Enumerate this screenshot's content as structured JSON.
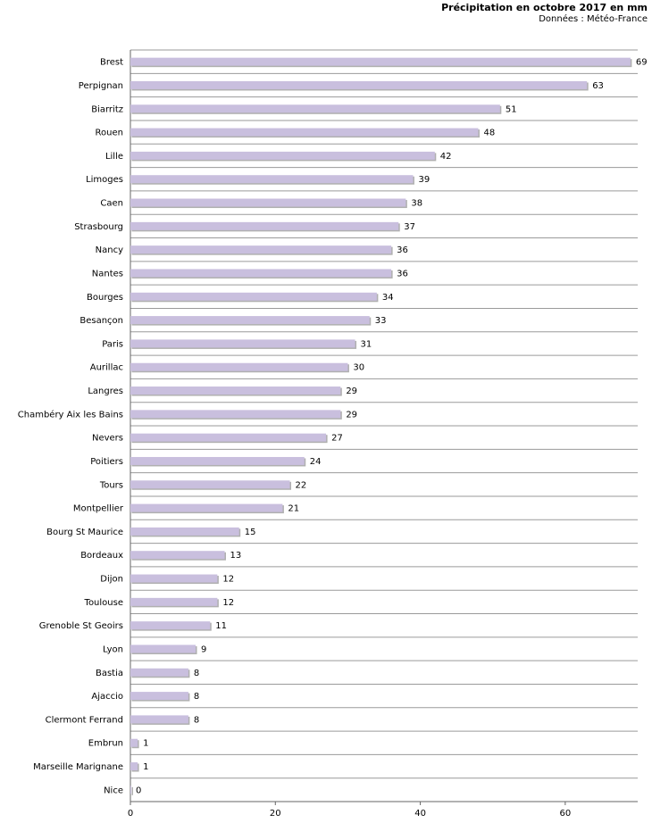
{
  "chart_data": {
    "type": "bar",
    "orientation": "horizontal",
    "title": "Précipitation en octobre 2017 en mm",
    "subtitle": "Données : Météo-France",
    "categories": [
      "Brest",
      "Perpignan",
      "Biarritz",
      "Rouen",
      "Lille",
      "Limoges",
      "Caen",
      "Strasbourg",
      "Nancy",
      "Nantes",
      "Bourges",
      "Besançon",
      "Paris",
      "Aurillac",
      "Langres",
      "Chambéry Aix les Bains",
      "Nevers",
      "Poitiers",
      "Tours",
      "Montpellier",
      "Bourg St Maurice",
      "Bordeaux",
      "Dijon",
      "Toulouse",
      "Grenoble St Geoirs",
      "Lyon",
      "Bastia",
      "Ajaccio",
      "Clermont Ferrand",
      "Embrun",
      "Marseille Marignane",
      "Nice"
    ],
    "values": [
      69,
      63,
      51,
      48,
      42,
      39,
      38,
      37,
      36,
      36,
      34,
      33,
      31,
      30,
      29,
      29,
      27,
      24,
      22,
      21,
      15,
      13,
      12,
      12,
      11,
      9,
      8,
      8,
      8,
      1,
      1,
      0
    ],
    "value_labels": [
      "69",
      "63",
      "51",
      "48",
      "42",
      "39",
      "38",
      "37",
      "36",
      "36",
      "34",
      "33",
      "31",
      "30",
      "29",
      "29",
      "27",
      "24",
      "22",
      "21",
      "15",
      "13",
      "12",
      "12",
      "11",
      "9",
      "8",
      "8",
      "8",
      "1",
      "1",
      "0"
    ],
    "xlim": [
      0,
      70
    ],
    "xticks": [
      0,
      20,
      40,
      60
    ],
    "xtick_labels": [
      "0",
      "20",
      "40",
      "60"
    ],
    "xlabel": "",
    "ylabel": "",
    "grid": "horizontal row lines",
    "legend": "none",
    "colors": {
      "bar": "#c9bfde",
      "bar_shadow": "#8e8e8e",
      "grid": "#9a9a9a",
      "axis": "#666666"
    }
  }
}
